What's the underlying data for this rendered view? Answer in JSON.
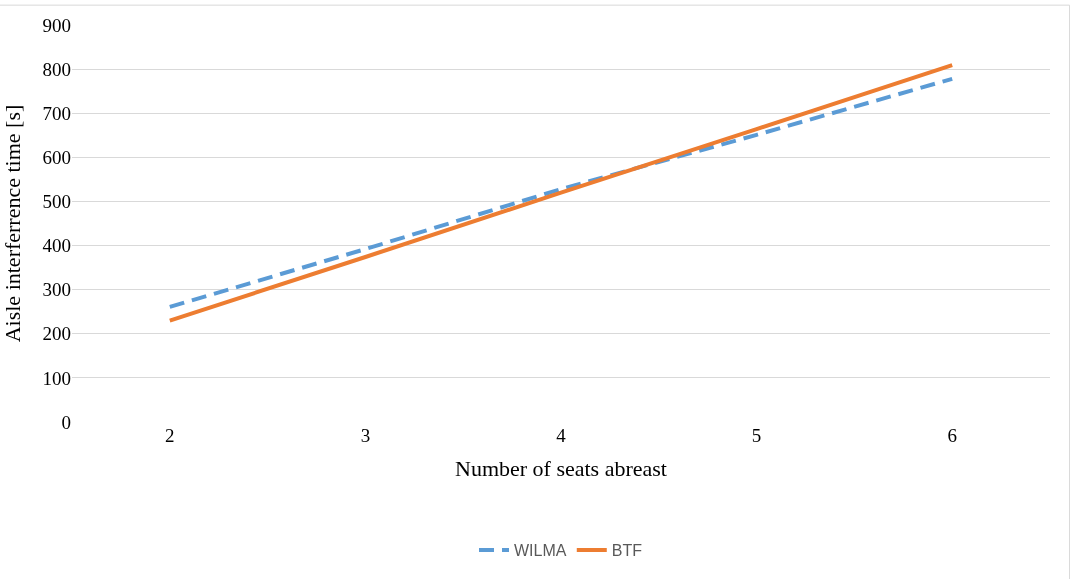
{
  "chart_data": {
    "type": "line",
    "xlabel": "Number of seats abreast",
    "ylabel": "Aisle interferrence time [s]",
    "categories": [
      "2",
      "3",
      "4",
      "5",
      "6"
    ],
    "series": [
      {
        "name": "WILMA",
        "color": "#5b9bd5",
        "values": [
          261,
          392,
          528,
          651,
          778
        ],
        "line_style": "dashed"
      },
      {
        "name": "BTF",
        "color": "#ed7d31",
        "values": [
          230,
          374,
          520,
          664,
          809
        ],
        "line_style": "solid"
      }
    ],
    "ylim": [
      0,
      900
    ],
    "yticks": [
      0,
      100,
      200,
      300,
      400,
      500,
      600,
      700,
      800,
      900
    ],
    "grid": "y",
    "legend": "bottom",
    "marker": "none"
  }
}
